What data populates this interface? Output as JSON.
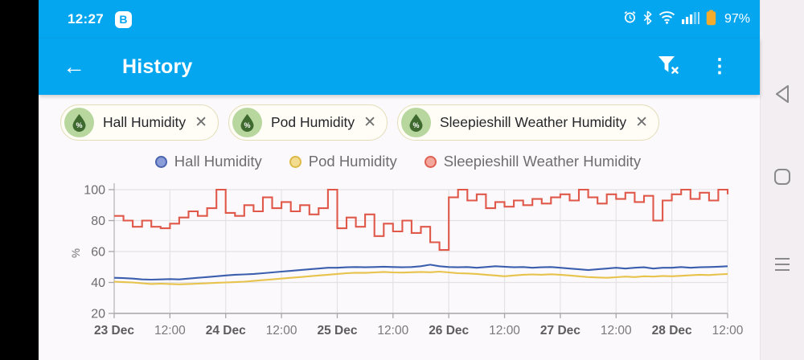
{
  "status_bar": {
    "time": "12:27",
    "badge": "B",
    "battery": "97%",
    "battery_color": "#f5ab2c",
    "icons": [
      "alarm-icon",
      "bluetooth-icon",
      "wifi-icon",
      "signal-icon",
      "battery-icon"
    ]
  },
  "header": {
    "title": "History",
    "accent_color": "#05a6f0",
    "actions": [
      "filter-remove-icon",
      "overflow-menu-icon"
    ]
  },
  "filters": {
    "chips": [
      {
        "label": "Hall Humidity",
        "icon": "humidity-droplet-icon"
      },
      {
        "label": "Pod Humidity",
        "icon": "humidity-droplet-icon"
      },
      {
        "label": "Sleepieshill Weather Humidity",
        "icon": "humidity-droplet-icon"
      }
    ]
  },
  "legend": {
    "items": [
      {
        "label": "Hall Humidity",
        "fill": "#8a9dd8",
        "stroke": "#4a64af"
      },
      {
        "label": "Pod Humidity",
        "fill": "#f3dc90",
        "stroke": "#ddb945"
      },
      {
        "label": "Sleepieshill Weather Humidity",
        "fill": "#f4a79c",
        "stroke": "#df6052"
      }
    ]
  },
  "chart_data": {
    "type": "line",
    "title": "",
    "ylabel": "%",
    "xlabel": "",
    "ylim": [
      20,
      100
    ],
    "y_ticks": [
      20,
      40,
      60,
      80,
      100
    ],
    "grid": true,
    "legend_position": "top",
    "x_unit": "hours since 23 Dec 00:00",
    "x_range_hours": [
      0,
      132
    ],
    "x_step_hours": 2,
    "x_ticks": [
      {
        "hour": 0,
        "label": "23 Dec",
        "bold": true
      },
      {
        "hour": 12,
        "label": "12:00",
        "bold": false
      },
      {
        "hour": 24,
        "label": "24 Dec",
        "bold": true
      },
      {
        "hour": 36,
        "label": "12:00",
        "bold": false
      },
      {
        "hour": 48,
        "label": "25 Dec",
        "bold": true
      },
      {
        "hour": 60,
        "label": "12:00",
        "bold": false
      },
      {
        "hour": 72,
        "label": "26 Dec",
        "bold": true
      },
      {
        "hour": 84,
        "label": "12:00",
        "bold": false
      },
      {
        "hour": 96,
        "label": "27 Dec",
        "bold": true
      },
      {
        "hour": 108,
        "label": "12:00",
        "bold": false
      },
      {
        "hour": 120,
        "label": "28 Dec",
        "bold": true
      },
      {
        "hour": 132,
        "label": "12:00",
        "bold": false
      }
    ],
    "series": [
      {
        "name": "Hall Humidity",
        "color": "#3b5fae",
        "style": "line",
        "values": [
          43,
          42.8,
          42.5,
          42,
          41.8,
          42,
          42.2,
          42,
          42.5,
          43,
          43.5,
          44,
          44.5,
          45,
          45.2,
          45.5,
          46,
          46.5,
          47,
          47.5,
          48,
          48.5,
          49,
          49.5,
          49.5,
          49.8,
          50,
          49.8,
          50,
          50.2,
          50,
          49.8,
          50,
          50.5,
          51.5,
          50.5,
          50,
          49.8,
          50,
          49.5,
          50,
          50.5,
          50.2,
          49.8,
          50,
          49.5,
          49.8,
          50,
          49.5,
          49,
          48.5,
          48,
          48.5,
          49,
          49.5,
          49,
          49.5,
          49.8,
          49,
          49.5,
          49.5,
          50,
          49.5,
          49.8,
          50,
          50.2,
          50.5
        ]
      },
      {
        "name": "Pod Humidity",
        "color": "#e8c34c",
        "style": "line",
        "values": [
          40.5,
          40.2,
          40,
          39.5,
          39,
          39.2,
          39,
          38.8,
          39,
          39.2,
          39.5,
          39.8,
          40,
          40.2,
          40.5,
          41,
          41.5,
          42,
          42.5,
          43,
          43.5,
          44,
          44.5,
          45,
          45.5,
          46,
          46.3,
          46.2,
          46.5,
          46.8,
          46.5,
          46.4,
          46.6,
          46.8,
          46.6,
          47,
          46.5,
          46,
          45.8,
          45.5,
          45,
          44.5,
          44,
          44.5,
          45,
          45.2,
          45,
          45.3,
          45,
          44.5,
          44,
          43.5,
          43.2,
          43,
          43.4,
          43.8,
          43.5,
          44,
          43.8,
          44.2,
          44,
          44.3,
          44.6,
          45,
          44.8,
          45.2,
          45.5
        ]
      },
      {
        "name": "Sleepieshill Weather Humidity",
        "color": "#e0584a",
        "style": "step",
        "values": [
          83,
          80,
          76,
          80,
          76,
          75,
          78,
          82,
          86,
          83,
          88,
          100,
          85,
          83,
          90,
          86,
          95,
          88,
          92,
          86,
          90,
          84,
          88,
          100,
          75,
          82,
          76,
          84,
          70,
          78,
          73,
          80,
          72,
          76,
          66,
          61,
          95,
          100,
          93,
          97,
          88,
          92,
          89,
          93,
          90,
          94,
          91,
          95,
          97,
          93,
          100,
          95,
          91,
          97,
          94,
          98,
          92,
          96,
          80,
          93,
          97,
          100,
          94,
          98,
          93,
          100,
          97
        ]
      }
    ]
  },
  "nav_bar": {
    "items": [
      {
        "name": "back"
      },
      {
        "name": "home"
      },
      {
        "name": "recents"
      }
    ]
  }
}
